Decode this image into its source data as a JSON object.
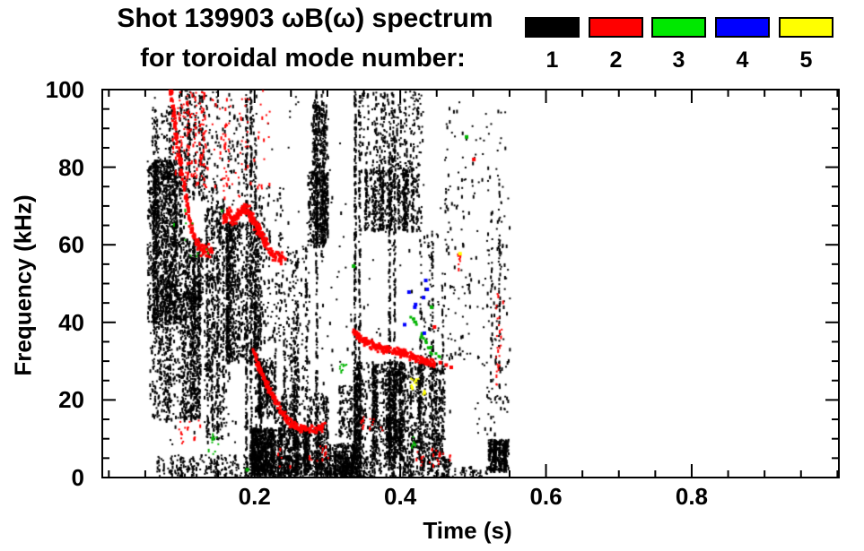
{
  "title": {
    "line1": "Shot 139903 ωB(ω) spectrum",
    "line2": "for toroidal mode number:"
  },
  "legend": {
    "items": [
      {
        "label": "1",
        "color": "#000000"
      },
      {
        "label": "2",
        "color": "#ff0000"
      },
      {
        "label": "3",
        "color": "#00e800"
      },
      {
        "label": "4",
        "color": "#0000ff"
      },
      {
        "label": "5",
        "color": "#ffff00"
      }
    ]
  },
  "chart_data": {
    "type": "scatter",
    "title": "Shot 139903 ωB(ω) spectrum for toroidal mode number: 1 2 3 4 5",
    "xlabel": "Time (s)",
    "ylabel": "Frequency (kHz)",
    "xlim": [
      -0.009,
      1.002
    ],
    "ylim": [
      0,
      100
    ],
    "grid": false,
    "legend_position": "top-right",
    "xticks": {
      "major": [
        0.2,
        0.4,
        0.6,
        0.8
      ],
      "labels": [
        "0.2",
        "0.4",
        "0.6",
        "0.8"
      ],
      "minor_step": 0.05,
      "minor_range": [
        0,
        1.0
      ]
    },
    "yticks": {
      "major": [
        0,
        20,
        40,
        60,
        80,
        100
      ],
      "labels": [
        "0",
        "20",
        "40",
        "60",
        "80",
        "100"
      ],
      "minor_step": 5
    },
    "series": [
      {
        "name": "n=1",
        "mode": 1,
        "color": "#000000",
        "blobs": [
          [
            0.052,
            0.1,
            40,
            82,
            1600
          ],
          [
            0.055,
            0.125,
            15,
            48,
            1000
          ],
          [
            0.1,
            0.128,
            44,
            62,
            350
          ],
          [
            0.095,
            0.13,
            72,
            100,
            240
          ],
          [
            0.058,
            0.095,
            82,
            96,
            100
          ],
          [
            0.13,
            0.165,
            10,
            70,
            420
          ],
          [
            0.16,
            0.205,
            30,
            66,
            1050
          ],
          [
            0.2,
            0.225,
            16,
            31,
            320
          ],
          [
            0.195,
            0.3,
            1,
            13,
            1500
          ],
          [
            0.225,
            0.3,
            13,
            22,
            260
          ],
          [
            0.24,
            0.275,
            22,
            60,
            200
          ],
          [
            0.272,
            0.3,
            60,
            79,
            520
          ],
          [
            0.278,
            0.3,
            79,
            97,
            230
          ],
          [
            0.3,
            0.335,
            0,
            9,
            300
          ],
          [
            0.315,
            0.34,
            10,
            24,
            120
          ],
          [
            0.345,
            0.43,
            80,
            100,
            280
          ],
          [
            0.35,
            0.425,
            64,
            80,
            720
          ],
          [
            0.335,
            0.46,
            5,
            30,
            2100
          ],
          [
            0.3,
            0.35,
            0,
            6,
            260
          ],
          [
            0.35,
            0.47,
            0,
            5,
            300
          ],
          [
            0.47,
            0.52,
            0,
            3,
            40
          ],
          [
            0.43,
            0.5,
            30,
            65,
            110
          ],
          [
            0.46,
            0.55,
            65,
            97,
            80
          ],
          [
            0.52,
            0.548,
            2,
            10,
            400
          ],
          [
            0.5,
            0.55,
            10,
            65,
            100
          ],
          [
            0.065,
            0.3,
            0.5,
            6,
            450
          ],
          [
            0.13,
            0.2,
            70,
            100,
            130
          ],
          [
            0.205,
            0.24,
            35,
            75,
            140
          ],
          [
            0.06,
            0.47,
            0,
            100,
            260
          ]
        ],
        "streaks": [
          [
            0.134,
            8,
            70,
            80
          ],
          [
            0.141,
            12,
            75,
            70
          ],
          [
            0.148,
            10,
            78,
            80
          ],
          [
            0.156,
            15,
            72,
            60
          ],
          [
            0.188,
            0,
            100,
            150
          ],
          [
            0.194,
            0,
            100,
            150
          ],
          [
            0.2,
            0,
            88,
            110
          ],
          [
            0.207,
            0,
            62,
            70
          ],
          [
            0.227,
            0,
            40,
            50
          ],
          [
            0.24,
            0,
            38,
            55
          ],
          [
            0.254,
            0,
            30,
            45
          ],
          [
            0.27,
            20,
            60,
            45
          ],
          [
            0.284,
            0,
            100,
            140
          ],
          [
            0.292,
            55,
            100,
            60
          ],
          [
            0.337,
            0,
            100,
            190
          ],
          [
            0.343,
            0,
            100,
            130
          ],
          [
            0.384,
            0,
            95,
            140
          ],
          [
            0.391,
            0,
            95,
            140
          ],
          [
            0.427,
            0,
            70,
            55
          ],
          [
            0.443,
            0,
            65,
            45
          ],
          [
            0.457,
            0,
            55,
            35
          ],
          [
            0.524,
            10,
            70,
            35
          ],
          [
            0.535,
            20,
            75,
            45
          ]
        ],
        "curves": [],
        "dots": []
      },
      {
        "name": "n=2",
        "mode": 2,
        "color": "#ff0000",
        "blobs": [
          [
            0.086,
            0.135,
            75,
            100,
            150
          ],
          [
            0.14,
            0.22,
            72,
            100,
            80
          ],
          [
            0.095,
            0.125,
            9,
            15,
            16
          ],
          [
            0.22,
            0.3,
            3,
            9,
            18
          ],
          [
            0.345,
            0.375,
            12,
            16,
            14
          ],
          [
            0.42,
            0.47,
            3,
            8,
            22
          ],
          [
            0.53,
            0.54,
            24,
            48,
            26
          ],
          [
            0.478,
            0.484,
            53,
            58,
            12
          ]
        ],
        "streaks": [],
        "curves": [
          {
            "pts": [
              [
                0.084,
                100
              ],
              [
                0.088,
                94
              ],
              [
                0.092,
                88
              ],
              [
                0.097,
                82
              ],
              [
                0.102,
                76
              ],
              [
                0.107,
                70
              ],
              [
                0.112,
                65
              ],
              [
                0.118,
                61
              ],
              [
                0.125,
                59
              ],
              [
                0.133,
                58.5
              ],
              [
                0.142,
                59
              ]
            ],
            "n": 170,
            "jitter": 1.6
          },
          {
            "pts": [
              [
                0.157,
                66
              ],
              [
                0.164,
                68.5
              ],
              [
                0.171,
                66.5
              ],
              [
                0.178,
                68
              ],
              [
                0.186,
                69.5
              ],
              [
                0.193,
                68
              ],
              [
                0.2,
                65.5
              ],
              [
                0.208,
                63
              ],
              [
                0.216,
                60
              ],
              [
                0.225,
                57.5
              ],
              [
                0.242,
                56
              ]
            ],
            "n": 260,
            "jitter": 1.4
          },
          {
            "pts": [
              [
                0.196,
                34
              ],
              [
                0.203,
                30
              ],
              [
                0.21,
                26.5
              ],
              [
                0.218,
                23.5
              ],
              [
                0.226,
                20.5
              ],
              [
                0.234,
                18
              ],
              [
                0.242,
                15.5
              ],
              [
                0.25,
                14
              ],
              [
                0.26,
                13
              ],
              [
                0.272,
                12.5
              ],
              [
                0.284,
                12.5
              ],
              [
                0.295,
                13.5
              ]
            ],
            "n": 210,
            "jitter": 1.0
          },
          {
            "pts": [
              [
                0.336,
                37.8
              ],
              [
                0.345,
                36
              ],
              [
                0.355,
                34.8
              ],
              [
                0.366,
                33.8
              ],
              [
                0.378,
                33.2
              ],
              [
                0.39,
                32.8
              ],
              [
                0.402,
                32.2
              ],
              [
                0.414,
                31.5
              ],
              [
                0.426,
                30.6
              ],
              [
                0.437,
                29.8
              ],
              [
                0.446,
                29.3
              ]
            ],
            "n": 260,
            "jitter": 1.0
          }
        ],
        "dots": [
          [
            0.501,
            82
          ],
          [
            0.447,
            38.8
          ],
          [
            0.455,
            29.6
          ],
          [
            0.463,
            29.0
          ],
          [
            0.47,
            28.4
          ]
        ]
      },
      {
        "name": "n=3",
        "mode": 3,
        "color": "#00b400",
        "blobs": [
          [
            0.085,
            0.155,
            57,
            70,
            12
          ],
          [
            0.135,
            0.15,
            6,
            12,
            8
          ],
          [
            0.315,
            0.325,
            27.5,
            29.5,
            8
          ],
          [
            0.414,
            0.42,
            8,
            11,
            5
          ]
        ],
        "streaks": [],
        "curves": [
          {
            "pts": [
              [
                0.412,
                42
              ],
              [
                0.418,
                40.5
              ],
              [
                0.425,
                38.5
              ],
              [
                0.43,
                36.5
              ],
              [
                0.435,
                34.8
              ],
              [
                0.44,
                33.2
              ],
              [
                0.447,
                32.2
              ],
              [
                0.453,
                31.5
              ]
            ],
            "n": 24,
            "jitter": 1.2
          }
        ],
        "dots": [
          [
            0.336,
            54.5
          ],
          [
            0.491,
            87.8
          ],
          [
            0.19,
            2.0
          ],
          [
            0.143,
            10.0
          ],
          [
            0.443,
            43.9
          ]
        ]
      },
      {
        "name": "n=4",
        "mode": 4,
        "color": "#0000ff",
        "blobs": [],
        "streaks": [],
        "curves": [],
        "dots": [
          [
            0.406,
            39.4
          ],
          [
            0.412,
            47.8
          ],
          [
            0.42,
            43.9
          ],
          [
            0.421,
            44.6
          ],
          [
            0.432,
            46.4
          ],
          [
            0.433,
            37.2
          ],
          [
            0.435,
            50.8
          ],
          [
            0.437,
            48.5
          ]
        ]
      },
      {
        "name": "n=5",
        "mode": 5,
        "color": "#ffff00",
        "blobs": [
          [
            0.413,
            0.424,
            23.5,
            26,
            13
          ],
          [
            0.429,
            0.434,
            21.5,
            23,
            7
          ]
        ],
        "streaks": [],
        "curves": [],
        "dots": [
          [
            0.482,
            57.7
          ]
        ]
      }
    ]
  }
}
